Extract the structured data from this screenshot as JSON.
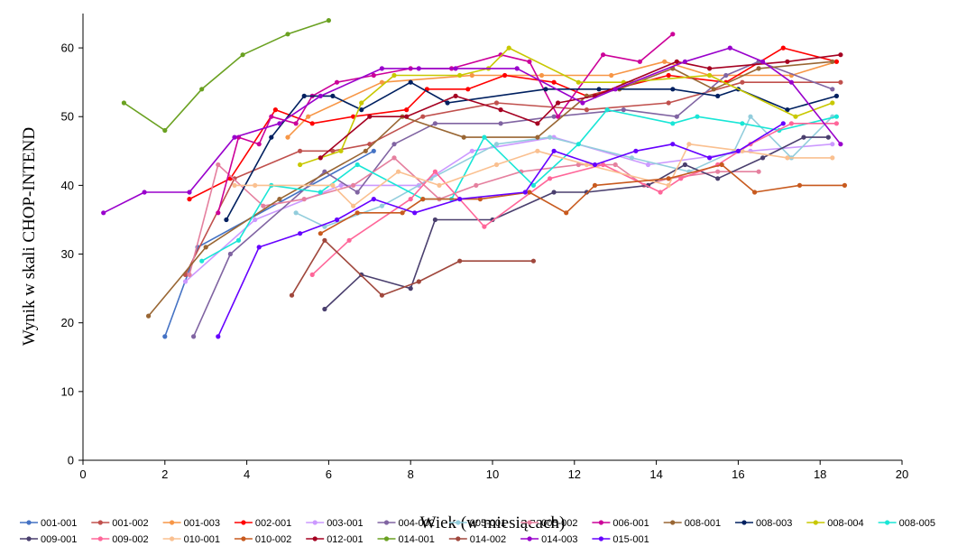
{
  "chart_data": {
    "type": "line",
    "xlabel": "Wiek (w miesiącach)",
    "ylabel": "Wynik w skali CHOP-INTEND",
    "xlim": [
      0,
      20
    ],
    "ylim": [
      0,
      65
    ],
    "xticks": [
      0,
      2,
      4,
      6,
      8,
      10,
      12,
      14,
      16,
      18,
      20
    ],
    "yticks": [
      0,
      10,
      20,
      30,
      40,
      50,
      60
    ],
    "grid": false,
    "legend_position": "bottom",
    "series": [
      {
        "name": "001-001",
        "color": "#4472c4",
        "points": [
          [
            2.0,
            18
          ],
          [
            2.8,
            31
          ],
          [
            7.1,
            45
          ]
        ]
      },
      {
        "name": "001-002",
        "color": "#c0504d",
        "points": [
          [
            2.5,
            27
          ],
          [
            3.7,
            41
          ],
          [
            5.3,
            45
          ],
          [
            6.1,
            45
          ],
          [
            7.0,
            46
          ],
          [
            8.3,
            50
          ],
          [
            10.1,
            52
          ],
          [
            12.3,
            51
          ],
          [
            14.3,
            52
          ],
          [
            16.1,
            55
          ],
          [
            18.5,
            55
          ]
        ]
      },
      {
        "name": "001-003",
        "color": "#f79646",
        "points": [
          [
            5.0,
            47
          ],
          [
            5.5,
            50
          ],
          [
            7.3,
            55
          ],
          [
            9.5,
            56
          ],
          [
            11.2,
            56
          ],
          [
            12.9,
            56
          ],
          [
            14.2,
            58
          ],
          [
            15.3,
            56
          ],
          [
            17.3,
            56
          ],
          [
            18.4,
            58
          ]
        ]
      },
      {
        "name": "002-001",
        "color": "#ff0000",
        "points": [
          [
            2.6,
            38
          ],
          [
            3.6,
            41
          ],
          [
            4.7,
            51
          ],
          [
            5.6,
            49
          ],
          [
            6.6,
            50
          ],
          [
            7.9,
            51
          ],
          [
            8.4,
            54
          ],
          [
            9.4,
            54
          ],
          [
            10.3,
            56
          ],
          [
            11.5,
            55
          ],
          [
            12.3,
            53
          ],
          [
            14.3,
            56
          ],
          [
            15.7,
            55
          ],
          [
            17.1,
            60
          ],
          [
            18.4,
            58
          ]
        ]
      },
      {
        "name": "003-001",
        "color": "#cc99ff",
        "points": [
          [
            2.5,
            26
          ],
          [
            4.2,
            35
          ],
          [
            6.3,
            40
          ],
          [
            8.2,
            40
          ],
          [
            9.5,
            45
          ],
          [
            11.5,
            47
          ],
          [
            13.8,
            43
          ],
          [
            16.3,
            45
          ],
          [
            18.3,
            46
          ]
        ]
      },
      {
        "name": "004-002",
        "color": "#8064a2",
        "points": [
          [
            2.7,
            18
          ],
          [
            3.6,
            30
          ],
          [
            5.9,
            42
          ],
          [
            6.7,
            39
          ],
          [
            7.6,
            46
          ],
          [
            8.6,
            49
          ],
          [
            10.2,
            49
          ],
          [
            11.5,
            50
          ],
          [
            13.2,
            51
          ],
          [
            14.5,
            50
          ],
          [
            15.7,
            56
          ],
          [
            16.5,
            58
          ],
          [
            18.3,
            54
          ]
        ]
      },
      {
        "name": "005-001",
        "color": "#92cddc",
        "points": [
          [
            5.2,
            36
          ],
          [
            5.9,
            34
          ],
          [
            7.3,
            37
          ],
          [
            8.5,
            41
          ],
          [
            10.1,
            46
          ],
          [
            11.4,
            47
          ],
          [
            13.4,
            44
          ],
          [
            14.8,
            42
          ],
          [
            15.9,
            45
          ],
          [
            16.3,
            50
          ],
          [
            17.3,
            44
          ],
          [
            18.3,
            50
          ]
        ]
      },
      {
        "name": "005-002",
        "color": "#e5809f",
        "points": [
          [
            2.6,
            27
          ],
          [
            3.3,
            43
          ],
          [
            4.4,
            37
          ],
          [
            5.4,
            38
          ],
          [
            6.6,
            40
          ],
          [
            7.6,
            44
          ],
          [
            8.7,
            38
          ],
          [
            9.6,
            40
          ],
          [
            10.7,
            42
          ],
          [
            12.1,
            43
          ],
          [
            13.0,
            43
          ],
          [
            13.7,
            40
          ],
          [
            14.3,
            41
          ],
          [
            15.5,
            42
          ],
          [
            16.5,
            42
          ]
        ]
      },
      {
        "name": "006-001",
        "color": "#cc0099",
        "points": [
          [
            3.3,
            36
          ],
          [
            3.8,
            47
          ],
          [
            4.3,
            46
          ],
          [
            4.6,
            50
          ],
          [
            5.2,
            49
          ],
          [
            5.6,
            53
          ],
          [
            6.2,
            55
          ],
          [
            7.1,
            56
          ],
          [
            8.0,
            57
          ],
          [
            9.0,
            57
          ],
          [
            10.2,
            59
          ],
          [
            10.9,
            58
          ],
          [
            11.6,
            50
          ],
          [
            12.7,
            59
          ],
          [
            13.6,
            58
          ],
          [
            14.4,
            62
          ]
        ]
      },
      {
        "name": "008-001",
        "color": "#996633",
        "points": [
          [
            1.6,
            21
          ],
          [
            3.0,
            31
          ],
          [
            4.8,
            38
          ],
          [
            6.9,
            45
          ],
          [
            7.8,
            50
          ],
          [
            9.3,
            47
          ],
          [
            11.1,
            47
          ],
          [
            12.3,
            53
          ],
          [
            13.1,
            54
          ],
          [
            14.4,
            57
          ],
          [
            15.4,
            54
          ],
          [
            16.5,
            57
          ],
          [
            18.3,
            58
          ]
        ]
      },
      {
        "name": "008-003",
        "color": "#002060",
        "points": [
          [
            3.5,
            35
          ],
          [
            4.6,
            47
          ],
          [
            5.4,
            53
          ],
          [
            6.1,
            53
          ],
          [
            6.8,
            51
          ],
          [
            8.0,
            55
          ],
          [
            8.9,
            52
          ],
          [
            11.3,
            54
          ],
          [
            12.6,
            54
          ],
          [
            14.4,
            54
          ],
          [
            15.5,
            53
          ],
          [
            16.0,
            54
          ],
          [
            17.2,
            51
          ],
          [
            18.4,
            53
          ]
        ]
      },
      {
        "name": "008-004",
        "color": "#c8c800",
        "points": [
          [
            5.3,
            43
          ],
          [
            6.3,
            45
          ],
          [
            6.8,
            52
          ],
          [
            7.6,
            56
          ],
          [
            9.2,
            56
          ],
          [
            9.9,
            57
          ],
          [
            10.4,
            60
          ],
          [
            12.1,
            55
          ],
          [
            13.2,
            55
          ],
          [
            15.3,
            56
          ],
          [
            17.4,
            50
          ],
          [
            18.3,
            52
          ]
        ]
      },
      {
        "name": "008-005",
        "color": "#19e6d6",
        "points": [
          [
            2.9,
            29
          ],
          [
            3.8,
            32
          ],
          [
            4.6,
            40
          ],
          [
            5.8,
            39
          ],
          [
            6.7,
            43
          ],
          [
            8.3,
            38
          ],
          [
            9.0,
            38
          ],
          [
            9.8,
            47
          ],
          [
            11.0,
            40
          ],
          [
            12.1,
            46
          ],
          [
            12.8,
            51
          ],
          [
            14.4,
            49
          ],
          [
            15.0,
            50
          ],
          [
            16.1,
            49
          ],
          [
            17.0,
            48
          ],
          [
            18.4,
            50
          ]
        ]
      },
      {
        "name": "009-001",
        "color": "#4a3f6e",
        "points": [
          [
            5.9,
            22
          ],
          [
            6.8,
            27
          ],
          [
            8.0,
            25
          ],
          [
            8.6,
            35
          ],
          [
            10.0,
            35
          ],
          [
            11.5,
            39
          ],
          [
            12.3,
            39
          ],
          [
            13.8,
            40
          ],
          [
            14.7,
            43
          ],
          [
            15.5,
            41
          ],
          [
            16.6,
            44
          ],
          [
            17.6,
            47
          ],
          [
            18.2,
            47
          ]
        ]
      },
      {
        "name": "009-002",
        "color": "#ff6699",
        "points": [
          [
            5.6,
            27
          ],
          [
            6.5,
            32
          ],
          [
            8.0,
            38
          ],
          [
            8.6,
            42
          ],
          [
            9.8,
            34
          ],
          [
            11.4,
            41
          ],
          [
            12.7,
            43
          ],
          [
            14.1,
            39
          ],
          [
            14.6,
            41
          ],
          [
            15.5,
            43
          ],
          [
            16.3,
            46
          ],
          [
            17.3,
            49
          ],
          [
            18.4,
            49
          ]
        ]
      },
      {
        "name": "010-001",
        "color": "#fac090",
        "points": [
          [
            3.7,
            40
          ],
          [
            4.2,
            40
          ],
          [
            6.1,
            40
          ],
          [
            6.6,
            37
          ],
          [
            7.7,
            42
          ],
          [
            8.7,
            40
          ],
          [
            10.1,
            43
          ],
          [
            11.1,
            45
          ],
          [
            12.3,
            43
          ],
          [
            14.3,
            40
          ],
          [
            14.8,
            46
          ],
          [
            16.1,
            45
          ],
          [
            17.2,
            44
          ],
          [
            18.3,
            44
          ]
        ]
      },
      {
        "name": "010-002",
        "color": "#c85a1e",
        "points": [
          [
            5.8,
            33
          ],
          [
            6.7,
            36
          ],
          [
            7.8,
            36
          ],
          [
            8.3,
            38
          ],
          [
            9.7,
            38
          ],
          [
            10.9,
            39
          ],
          [
            11.8,
            36
          ],
          [
            12.5,
            40
          ],
          [
            14.3,
            41
          ],
          [
            15.6,
            43
          ],
          [
            16.4,
            39
          ],
          [
            17.5,
            40
          ],
          [
            18.6,
            40
          ]
        ]
      },
      {
        "name": "012-001",
        "color": "#a50021",
        "points": [
          [
            5.8,
            44
          ],
          [
            7.0,
            50
          ],
          [
            7.9,
            50
          ],
          [
            9.1,
            53
          ],
          [
            10.2,
            51
          ],
          [
            11.1,
            49
          ],
          [
            11.6,
            52
          ],
          [
            12.5,
            53
          ],
          [
            14.5,
            58
          ],
          [
            15.3,
            57
          ],
          [
            17.2,
            58
          ],
          [
            18.5,
            59
          ]
        ]
      },
      {
        "name": "014-001",
        "color": "#6aa121",
        "points": [
          [
            1.0,
            52
          ],
          [
            2.0,
            48
          ],
          [
            2.9,
            54
          ],
          [
            3.9,
            59
          ],
          [
            5.0,
            62
          ],
          [
            6.0,
            64
          ]
        ]
      },
      {
        "name": "014-002",
        "color": "#a0473c",
        "points": [
          [
            5.1,
            24
          ],
          [
            5.9,
            32
          ],
          [
            7.3,
            24
          ],
          [
            8.2,
            26
          ],
          [
            9.2,
            29
          ],
          [
            11.0,
            29
          ]
        ]
      },
      {
        "name": "014-003",
        "color": "#9900cc",
        "points": [
          [
            0.5,
            36
          ],
          [
            1.5,
            39
          ],
          [
            2.6,
            39
          ],
          [
            3.7,
            47
          ],
          [
            4.8,
            49
          ],
          [
            5.8,
            53
          ],
          [
            7.3,
            57
          ],
          [
            8.2,
            57
          ],
          [
            9.1,
            57
          ],
          [
            10.6,
            57
          ],
          [
            12.2,
            52
          ],
          [
            13.0,
            54
          ],
          [
            14.7,
            58
          ],
          [
            15.8,
            60
          ],
          [
            16.6,
            58
          ],
          [
            17.3,
            55
          ],
          [
            18.5,
            46
          ]
        ]
      },
      {
        "name": "015-001",
        "color": "#6600ff",
        "points": [
          [
            3.3,
            18
          ],
          [
            4.3,
            31
          ],
          [
            5.3,
            33
          ],
          [
            6.2,
            35
          ],
          [
            7.1,
            38
          ],
          [
            8.1,
            36
          ],
          [
            9.2,
            38
          ],
          [
            10.8,
            39
          ],
          [
            11.5,
            45
          ],
          [
            12.5,
            43
          ],
          [
            13.5,
            45
          ],
          [
            14.4,
            46
          ],
          [
            15.3,
            44
          ],
          [
            16.0,
            45
          ],
          [
            17.1,
            49
          ]
        ]
      }
    ]
  }
}
